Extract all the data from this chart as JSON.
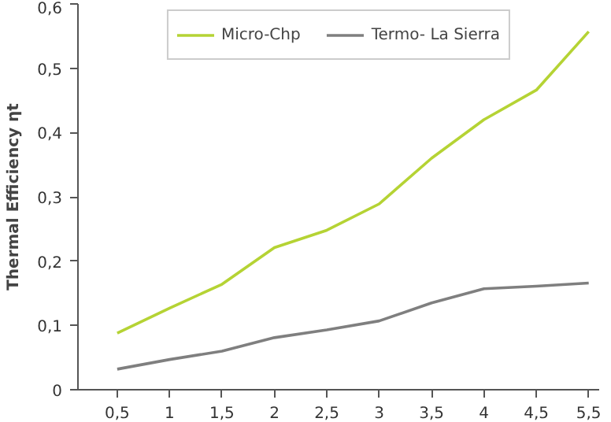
{
  "chart_data": {
    "type": "line",
    "ylabel": "Thermal Efficiency ηt",
    "categories": [
      "0,5",
      "1",
      "1,5",
      "2",
      "2,5",
      "3",
      "3,5",
      "4",
      "4,5",
      "5,5"
    ],
    "series": [
      {
        "name": "Micro-Chp",
        "color": "#b5d334",
        "values": [
          0.088,
          0.127,
          0.164,
          0.221,
          0.248,
          0.289,
          0.36,
          0.42,
          0.466,
          0.557
        ]
      },
      {
        "name": "Termo- La Sierra",
        "color": "#7f7f7f",
        "values": [
          0.032,
          0.047,
          0.06,
          0.081,
          0.093,
          0.107,
          0.135,
          0.157,
          0.161,
          0.166
        ]
      }
    ],
    "ylim": [
      0,
      0.6
    ],
    "yticks": [
      0,
      {
        "value": 0.1,
        "label": "0,1"
      },
      {
        "value": 0.2,
        "label": "0,2"
      },
      {
        "value": 0.3,
        "label": "0,3"
      },
      {
        "value": 0.4,
        "label": "0,4"
      },
      {
        "value": 0.5,
        "label": "0,5"
      },
      {
        "value": 0.6,
        "label": "0,6"
      }
    ],
    "grid": false,
    "legend": "top",
    "line_style": "solid"
  }
}
